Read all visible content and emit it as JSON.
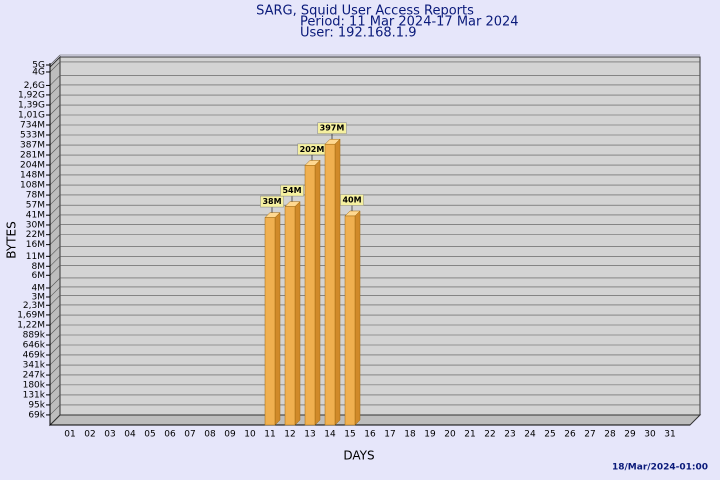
{
  "chart_data": {
    "type": "bar",
    "title": "SARG, Squid User Access Reports",
    "subtitle": "Period: 11 Mar 2024-17 Mar 2024",
    "user": "User: 192.168.1.9",
    "xlabel": "DAYS",
    "ylabel": "BYTES",
    "footer": "18/Mar/2024-01:00",
    "categories": [
      "01",
      "02",
      "03",
      "04",
      "05",
      "06",
      "07",
      "08",
      "09",
      "10",
      "11",
      "12",
      "13",
      "14",
      "15",
      "16",
      "17",
      "18",
      "19",
      "20",
      "21",
      "22",
      "23",
      "24",
      "25",
      "26",
      "27",
      "28",
      "29",
      "30",
      "31"
    ],
    "values": [
      null,
      null,
      null,
      null,
      null,
      null,
      null,
      null,
      null,
      null,
      38000000,
      54000000,
      202000000,
      397000000,
      40000000,
      null,
      null,
      null,
      null,
      null,
      null,
      null,
      null,
      null,
      null,
      null,
      null,
      null,
      null,
      null,
      null
    ],
    "value_labels": [
      null,
      null,
      null,
      null,
      null,
      null,
      null,
      null,
      null,
      null,
      "38M",
      "54M",
      "202M",
      "397M",
      "40M",
      null,
      null,
      null,
      null,
      null,
      null,
      null,
      null,
      null,
      null,
      null,
      null,
      null,
      null,
      null,
      null
    ],
    "color": "#f0b050",
    "log_scale": true,
    "grid": true,
    "ylim": [
      50000,
      5000000000
    ],
    "yticks": [
      {
        "value": 69000,
        "label": "69k"
      },
      {
        "value": 95000,
        "label": "95k"
      },
      {
        "value": 131000,
        "label": "131k"
      },
      {
        "value": 180000,
        "label": "180k"
      },
      {
        "value": 247000,
        "label": "247k"
      },
      {
        "value": 341000,
        "label": "341k"
      },
      {
        "value": 469000,
        "label": "469k"
      },
      {
        "value": 646000,
        "label": "646k"
      },
      {
        "value": 889000,
        "label": "889k"
      },
      {
        "value": 1220000,
        "label": "1,22M"
      },
      {
        "value": 1690000,
        "label": "1,69M"
      },
      {
        "value": 2300000,
        "label": "2,3M"
      },
      {
        "value": 3000000,
        "label": "3M"
      },
      {
        "value": 4000000,
        "label": "4M"
      },
      {
        "value": 6000000,
        "label": "6M"
      },
      {
        "value": 8000000,
        "label": "8M"
      },
      {
        "value": 11000000,
        "label": "11M"
      },
      {
        "value": 16000000,
        "label": "16M"
      },
      {
        "value": 22000000,
        "label": "22M"
      },
      {
        "value": 30000000,
        "label": "30M"
      },
      {
        "value": 41000000,
        "label": "41M"
      },
      {
        "value": 57000000,
        "label": "57M"
      },
      {
        "value": 78000000,
        "label": "78M"
      },
      {
        "value": 108000000,
        "label": "108M"
      },
      {
        "value": 148000000,
        "label": "148M"
      },
      {
        "value": 204000000,
        "label": "204M"
      },
      {
        "value": 281000000,
        "label": "281M"
      },
      {
        "value": 387000000,
        "label": "387M"
      },
      {
        "value": 533000000,
        "label": "533M"
      },
      {
        "value": 734000000,
        "label": "734M"
      },
      {
        "value": 1010000000,
        "label": "1,01G"
      },
      {
        "value": 1390000000,
        "label": "1,39G"
      },
      {
        "value": 1920000000,
        "label": "1,92G"
      },
      {
        "value": 2600000000,
        "label": "2,6G"
      },
      {
        "value": 4000000000,
        "label": "4G"
      },
      {
        "value": 5000000000,
        "label": "5G"
      }
    ]
  }
}
